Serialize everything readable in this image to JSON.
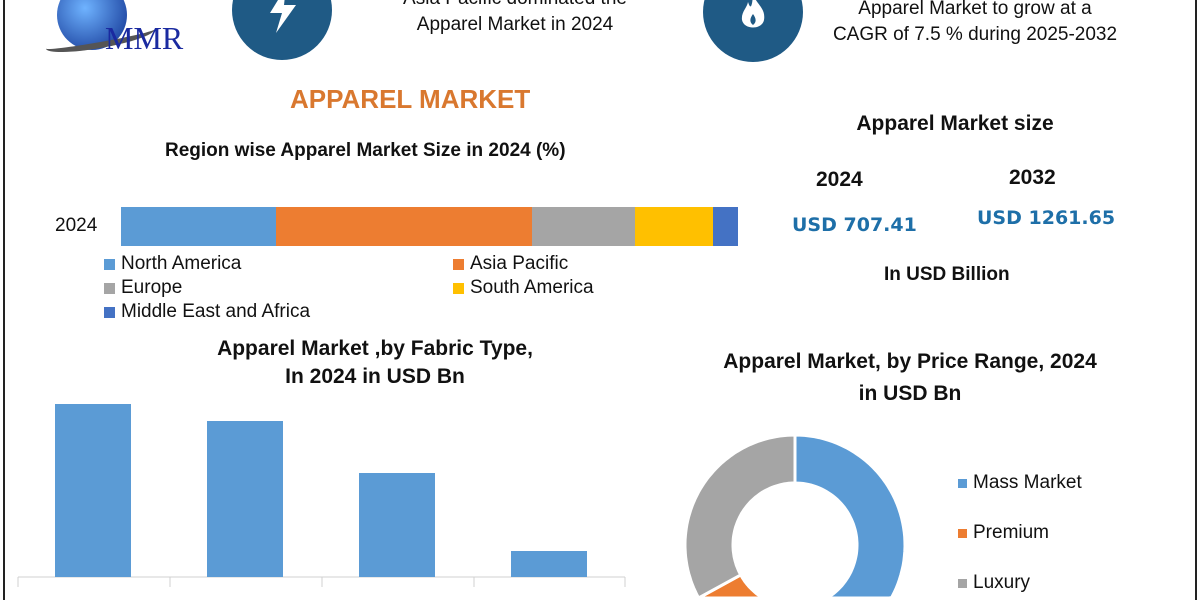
{
  "logo": {
    "text": "MMR"
  },
  "top": {
    "left_text": [
      "Asia Pacific dominated the",
      "Apparel Market in 2024"
    ],
    "right_text": [
      "Apparel Market to grow at a",
      "CAGR of 7.5 % during 2025-2032"
    ],
    "icons": [
      "lightning-icon",
      "flame-icon"
    ]
  },
  "title": "APPAREL MARKET",
  "market_size": {
    "title": "Apparel Market size",
    "year1": "2024",
    "year2": "2032",
    "value1": "USD 707.41",
    "value2": "USD 1261.65",
    "unit": "In USD Billion"
  },
  "colors": {
    "accent": "#d9782f",
    "icon_bg": "#1f5a85",
    "value_blue": "#1e6fa8"
  },
  "chart_data": [
    {
      "type": "bar",
      "stacked": true,
      "orientation": "horizontal",
      "title": "Region wise Apparel Market Size in 2024 (%)",
      "categories": [
        "2024"
      ],
      "series": [
        {
          "name": "North America",
          "values": [
            25.1
          ],
          "color": "#5b9bd5"
        },
        {
          "name": "Asia Pacific",
          "values": [
            41.5
          ],
          "color": "#ed7d31"
        },
        {
          "name": "Europe",
          "values": [
            16.7
          ],
          "color": "#a5a5a5"
        },
        {
          "name": "South America",
          "values": [
            12.6
          ],
          "color": "#ffc000"
        },
        {
          "name": "Middle East and Africa",
          "values": [
            4.1
          ],
          "color": "#4472c4"
        }
      ],
      "legend": "bottom"
    },
    {
      "type": "bar",
      "title": "Apparel Market ,by Fabric Type,",
      "subtitle": "In 2024 in USD Bn",
      "values": [
        173,
        156,
        104,
        26
      ],
      "color": "#5b9bd5"
    },
    {
      "type": "pie",
      "donut": true,
      "title": "Apparel Market, by Price Range, 2024",
      "subtitle": "in USD Bn",
      "labels": [
        "Mass Market",
        "Premium",
        "Luxury"
      ],
      "values": [
        42,
        25,
        33
      ],
      "colors": [
        "#5b9bd5",
        "#ed7d31",
        "#a5a5a5"
      ],
      "legend": "right"
    }
  ]
}
